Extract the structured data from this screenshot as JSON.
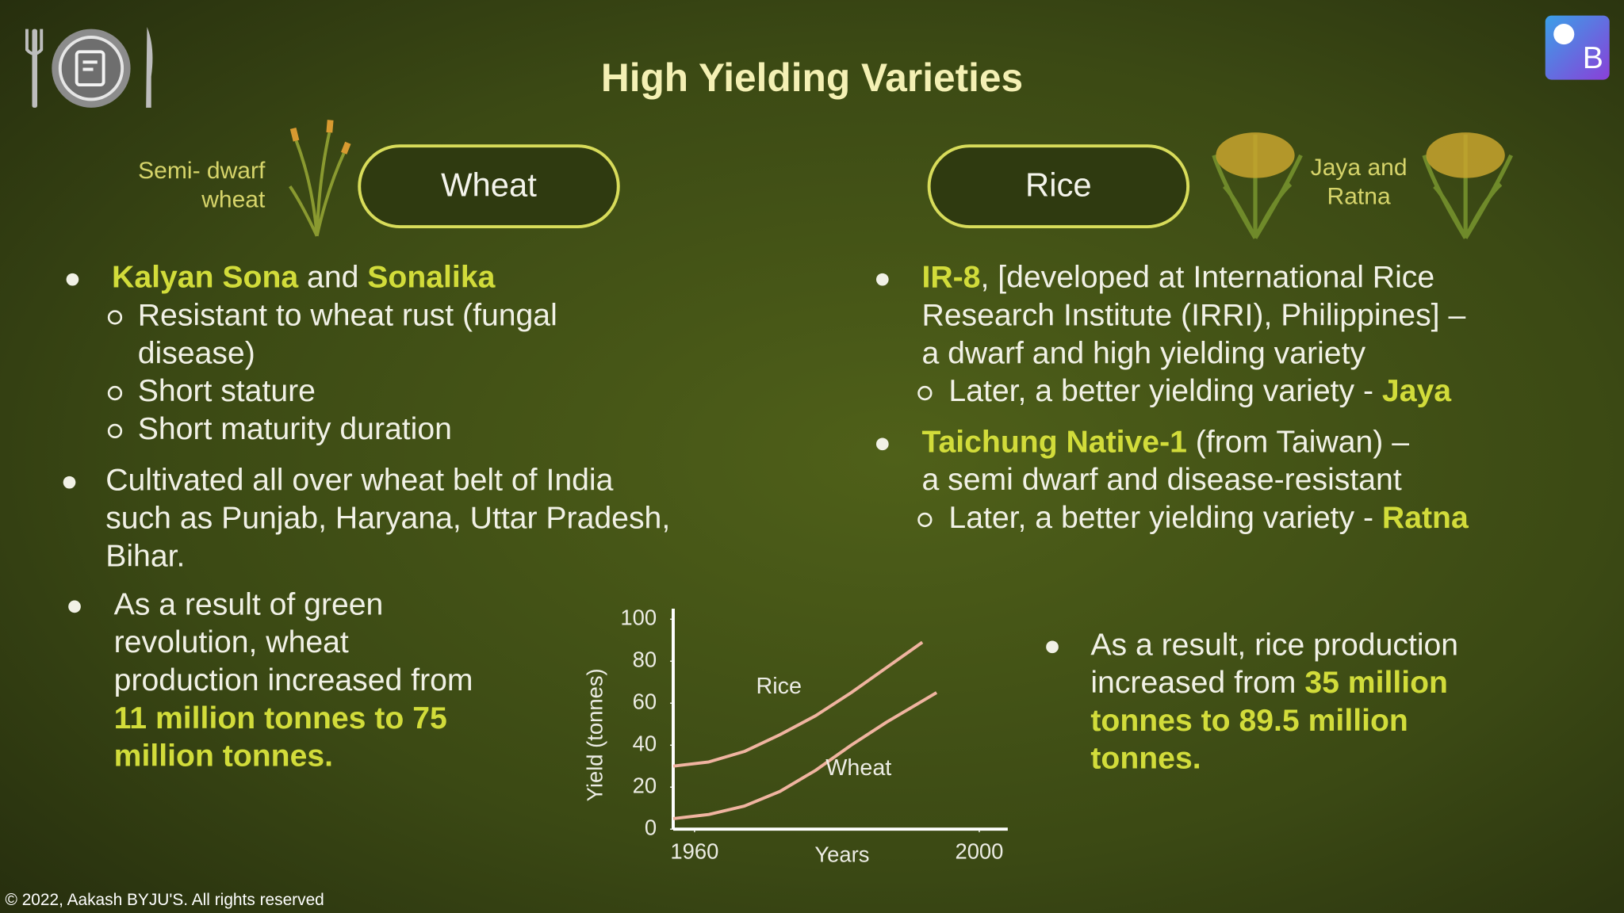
{
  "title": "High Yielding Varieties",
  "wheat": {
    "heading": "Wheat",
    "caption": [
      "Semi- dwarf",
      "wheat"
    ],
    "points": [
      {
        "lines": [
          [
            "Kalyan Sona",
            " and ",
            "Sonalika"
          ]
        ],
        "sub": [
          [
            [
              "Resistant to wheat rust (fungal"
            ],
            [
              "disease)"
            ]
          ],
          [
            [
              "Short stature"
            ]
          ],
          [
            [
              "Short maturity duration"
            ]
          ]
        ]
      },
      {
        "lines": [
          [
            "Cultivated all over wheat belt of India"
          ],
          [
            "such as Punjab, Haryana, Uttar Pradesh,"
          ],
          [
            "Bihar."
          ]
        ]
      },
      {
        "lines": [
          [
            "As a result of green"
          ],
          [
            "revolution, wheat"
          ],
          [
            "production increased from"
          ],
          [
            "11 million tonnes to 75"
          ],
          [
            "million tonnes."
          ]
        ]
      }
    ]
  },
  "rice": {
    "heading": "Rice",
    "caption": [
      "Jaya and",
      "Ratna"
    ],
    "points": [
      {
        "lines": [
          [
            "IR-8",
            ", [developed at International Rice"
          ],
          [
            "Research Institute (IRRI), Philippines] –"
          ],
          [
            "a dwarf and high yielding variety"
          ]
        ],
        "sub": [
          [
            [
              "Later, a better yielding variety - ",
              "Jaya"
            ]
          ]
        ]
      },
      {
        "lines": [
          [
            "Taichung Native-1",
            " (from Taiwan) –"
          ],
          [
            "a semi dwarf and disease-resistant"
          ]
        ],
        "sub": [
          [
            [
              "Later, a better yielding variety - ",
              "Ratna"
            ]
          ]
        ]
      },
      {
        "lines": [
          [
            "As a result, rice production"
          ],
          [
            "increased from ",
            "35 million"
          ],
          [
            "tonnes to 89.5 million"
          ],
          [
            "tonnes."
          ]
        ]
      }
    ]
  },
  "chart_data": {
    "type": "line",
    "x_label": "Years",
    "y_label": "Yield (tonnes)",
    "x": [
      1957,
      1962,
      1967,
      1972,
      1977,
      1982,
      1987,
      1992,
      1994
    ],
    "series": [
      {
        "name": "Rice",
        "color": "#f0b4a0",
        "values": [
          30,
          32,
          37,
          45,
          54,
          65,
          77,
          89,
          null
        ]
      },
      {
        "name": "Wheat",
        "color": "#f0b4a0",
        "values": [
          5,
          7,
          11,
          18,
          28,
          40,
          51,
          61,
          65
        ]
      }
    ],
    "xlim": [
      1957,
      2004
    ],
    "xticks": [
      1960,
      2000
    ],
    "ylim": [
      0,
      105
    ],
    "yticks": [
      0,
      20,
      40,
      60,
      80,
      100
    ]
  },
  "copyright": "© 2022, Aakash BYJU'S. All rights reserved"
}
